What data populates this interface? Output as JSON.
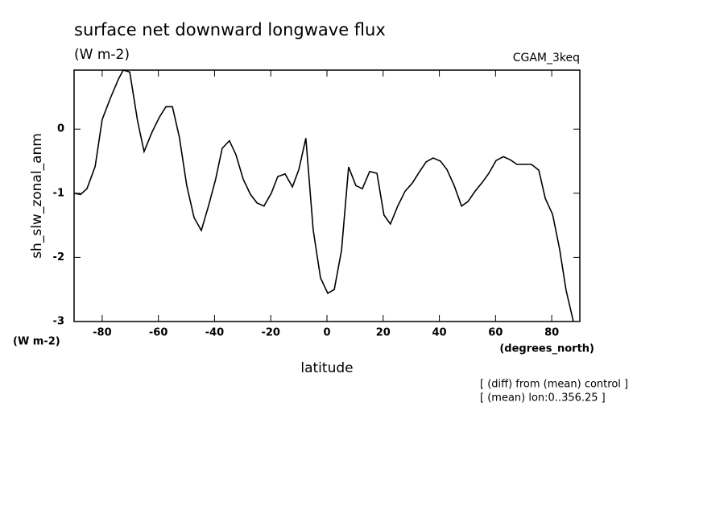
{
  "chart_data": {
    "type": "line",
    "title": "surface net downward longwave flux",
    "subtitle": "(W m-2)",
    "dataset_label": "CGAM_3keq",
    "y_label": "sh_slw_zonal_anm",
    "y_units": "(W m-2)",
    "x_label": "latitude",
    "x_units": "(degrees_north)",
    "notes": [
      "[ (diff) from (mean) control ]",
      "[ (mean) lon:0..356.25 ]"
    ],
    "color": "#000000",
    "xlim": [
      -90,
      90
    ],
    "xticks": [
      -80,
      -60,
      -40,
      -20,
      0,
      20,
      40,
      60,
      80
    ],
    "ylim": [
      -3,
      0.92
    ],
    "yticks": [
      -3,
      -2,
      -1,
      0
    ],
    "x": [
      -90,
      -87.7,
      -85.4,
      -82.5,
      -80,
      -77.1,
      -74.2,
      -72.5,
      -70.2,
      -67.4,
      -65.1,
      -62.2,
      -59.6,
      -57.3,
      -55,
      -52.5,
      -49.9,
      -47.3,
      -44.7,
      -42.1,
      -39.6,
      -37.3,
      -34.7,
      -32.4,
      -29.8,
      -27.2,
      -24.9,
      -22.4,
      -19.8,
      -17.5,
      -14.9,
      -12.3,
      -10,
      -7.5,
      -4.9,
      -2.3,
      0.3,
      2.6,
      5.2,
      7.7,
      10.3,
      12.6,
      15.2,
      17.8,
      20.3,
      22.6,
      25.2,
      27.8,
      30.4,
      32.7,
      35.3,
      37.8,
      40.4,
      42.7,
      45.3,
      47.9,
      50.2,
      52.7,
      55.3,
      57.6,
      60.2,
      62.8,
      65.3,
      67.6,
      70.2,
      72.8,
      75.4,
      77.7,
      80.3,
      82.8,
      85.1,
      87.7
    ],
    "values": [
      -1.0,
      -1.02,
      -0.93,
      -0.58,
      0.15,
      0.48,
      0.78,
      0.92,
      0.89,
      0.13,
      -0.35,
      -0.04,
      0.19,
      0.35,
      0.35,
      -0.13,
      -0.88,
      -1.38,
      -1.58,
      -1.19,
      -0.78,
      -0.3,
      -0.18,
      -0.4,
      -0.78,
      -1.02,
      -1.15,
      -1.2,
      -1.0,
      -0.74,
      -0.7,
      -0.9,
      -0.63,
      -0.14,
      -1.57,
      -2.32,
      -2.56,
      -2.5,
      -1.89,
      -0.59,
      -0.88,
      -0.93,
      -0.66,
      -0.69,
      -1.34,
      -1.48,
      -1.2,
      -0.97,
      -0.84,
      -0.68,
      -0.51,
      -0.45,
      -0.5,
      -0.63,
      -0.88,
      -1.2,
      -1.13,
      -0.97,
      -0.83,
      -0.69,
      -0.49,
      -0.43,
      -0.48,
      -0.55,
      -0.55,
      -0.55,
      -0.64,
      -1.08,
      -1.33,
      -1.87,
      -2.51,
      -3.0
    ]
  }
}
